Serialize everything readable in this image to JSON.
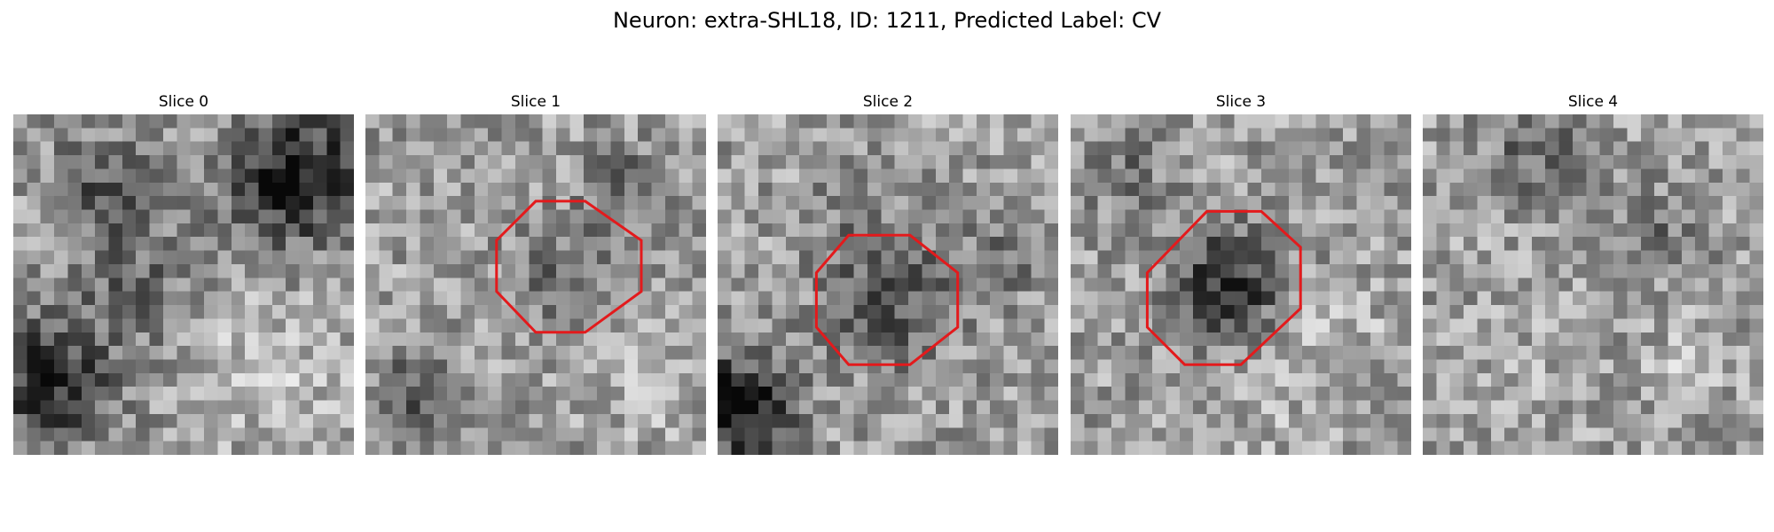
{
  "figure": {
    "title": "Neuron: extra-SHL18, ID: 1211, Predicted Label: CV"
  },
  "panels": [
    {
      "title": "Slice 0",
      "has_roi": false
    },
    {
      "title": "Slice 1",
      "has_roi": true
    },
    {
      "title": "Slice 2",
      "has_roi": true
    },
    {
      "title": "Slice 3",
      "has_roi": true
    },
    {
      "title": "Slice 4",
      "has_roi": false
    }
  ],
  "image": {
    "colormap": "gray",
    "roi_color": "#e31a1c",
    "roi_shape": "octagon"
  }
}
